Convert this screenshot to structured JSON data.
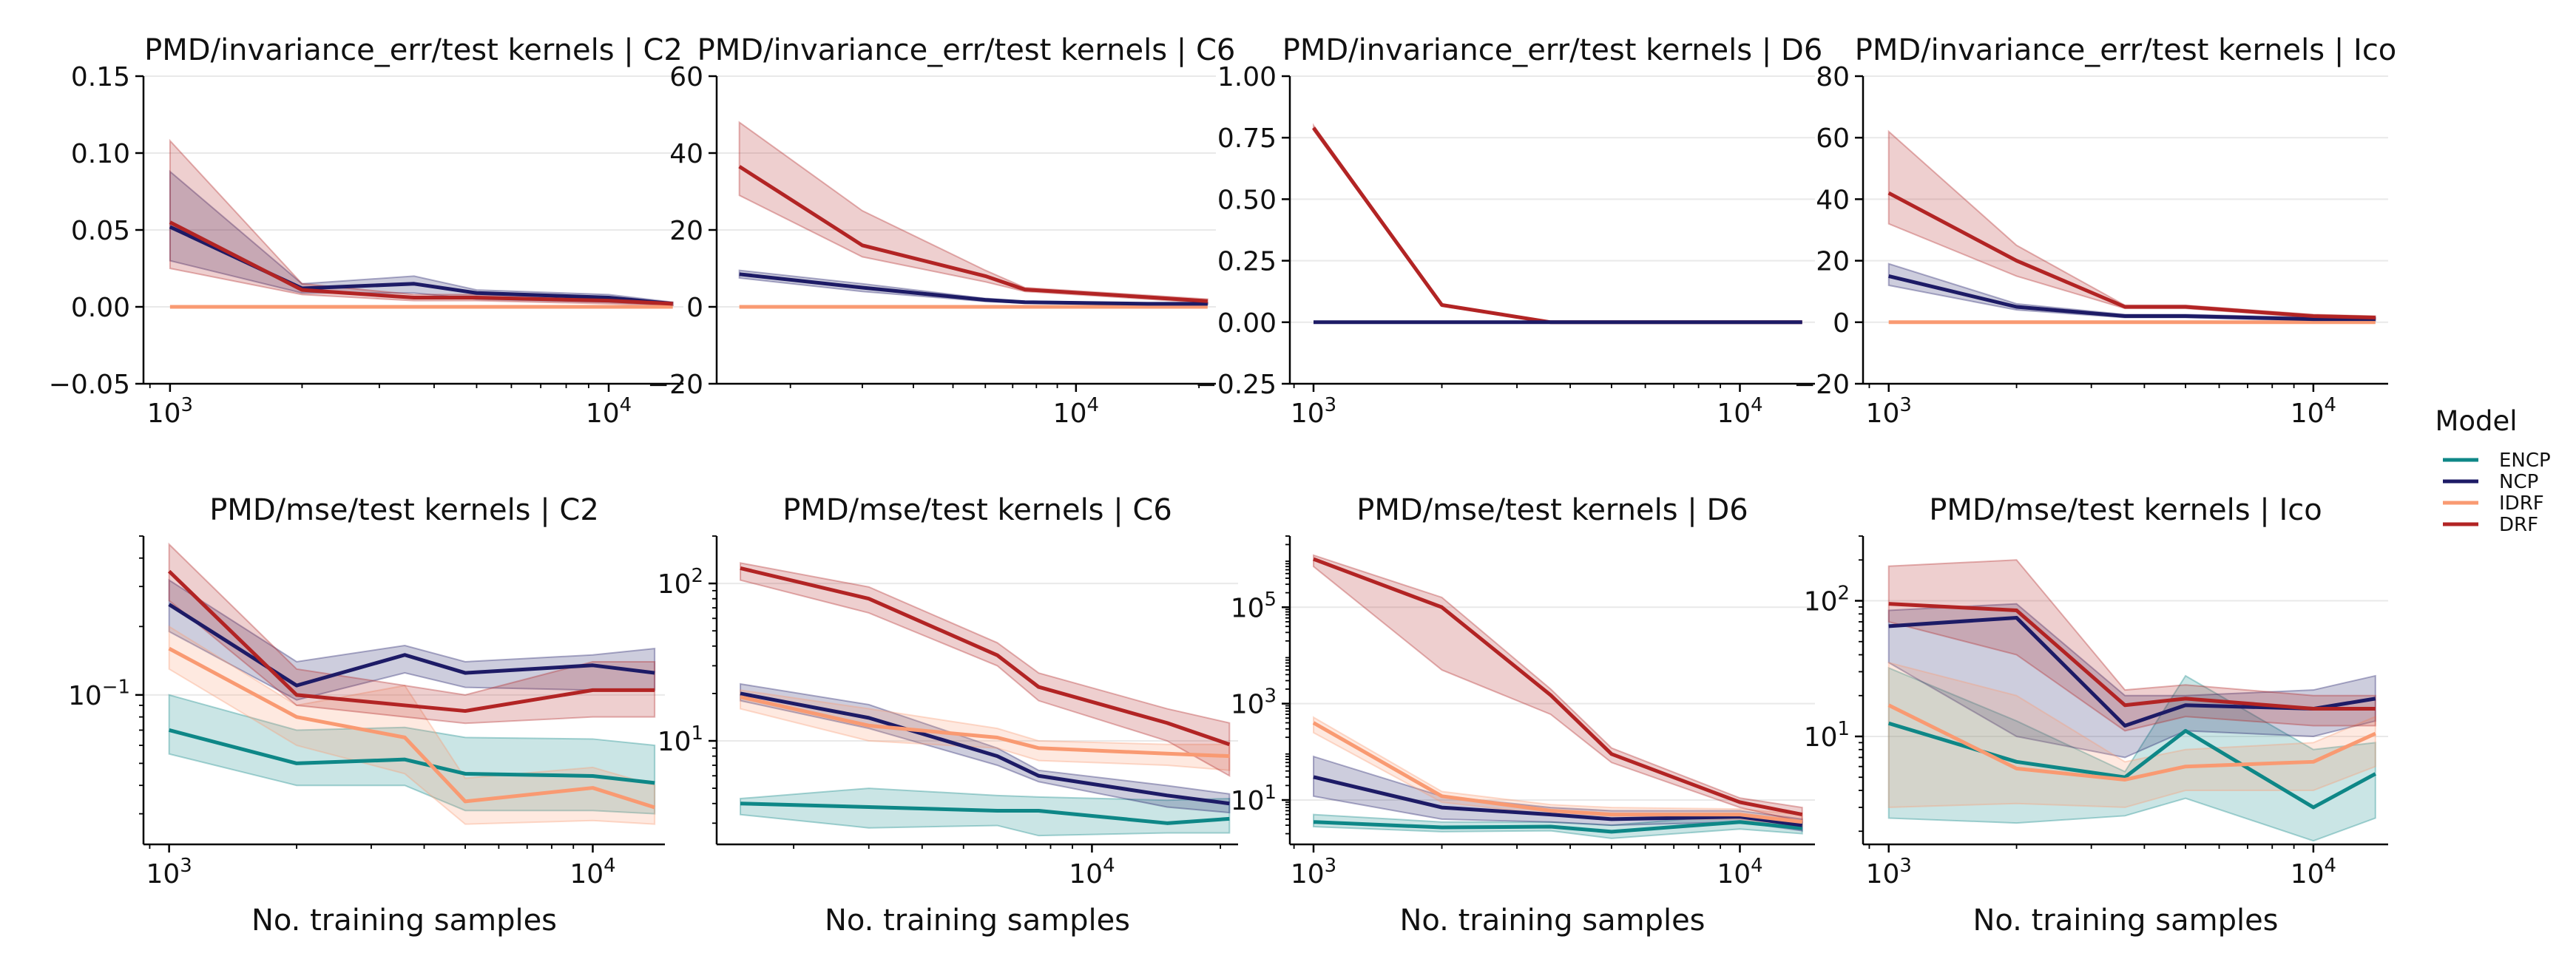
{
  "legend": {
    "title": "Model",
    "entries": [
      {
        "name": "ENCP",
        "color": "#0e8787"
      },
      {
        "name": "NCP",
        "color": "#1d1b66"
      },
      {
        "name": "IDRF",
        "color": "#f99a72"
      },
      {
        "name": "DRF",
        "color": "#b22424"
      }
    ]
  },
  "chart_data": [
    {
      "type": "line",
      "title": "PMD/invariance_err/test kernels | C2",
      "xlabel": "",
      "ylabel": "",
      "xscale": "log",
      "yscale": "linear",
      "xlim": [
        870,
        14800
      ],
      "ylim": [
        -0.05,
        0.15
      ],
      "xticks": [
        1000,
        10000
      ],
      "xtick_labels": [
        "10^3",
        "10^4"
      ],
      "yticks": [
        -0.05,
        0,
        0.05,
        0.1,
        0.15
      ],
      "ytick_labels": [
        "−0.05",
        "0.00",
        "0.05",
        "0.10",
        "0.15"
      ],
      "grid": "horizontal",
      "x": [
        1000,
        2000,
        3600,
        5000,
        10000,
        14000
      ],
      "series": [
        {
          "name": "IDRF",
          "values": [
            0,
            0,
            0,
            0,
            0,
            0
          ],
          "lower": [
            0,
            0,
            0,
            0,
            0,
            0
          ],
          "upper": [
            0,
            0,
            0,
            0,
            0,
            0
          ]
        },
        {
          "name": "NCP",
          "values": [
            0.052,
            0.012,
            0.015,
            0.009,
            0.006,
            0.002
          ],
          "lower": [
            0.03,
            0.009,
            0.009,
            0.005,
            0.003,
            0.001
          ],
          "upper": [
            0.088,
            0.015,
            0.02,
            0.011,
            0.008,
            0.003
          ]
        },
        {
          "name": "DRF",
          "values": [
            0.055,
            0.011,
            0.006,
            0.006,
            0.004,
            0.002
          ],
          "lower": [
            0.025,
            0.008,
            0.004,
            0.004,
            0.002,
            0.001
          ],
          "upper": [
            0.108,
            0.015,
            0.008,
            0.008,
            0.006,
            0.003
          ]
        }
      ]
    },
    {
      "type": "line",
      "title": "PMD/invariance_err/test kernels | C6",
      "xlabel": "",
      "ylabel": "",
      "xscale": "log",
      "yscale": "linear",
      "xlim": [
        1320,
        22000
      ],
      "ylim": [
        -20,
        60
      ],
      "xticks": [
        10000
      ],
      "xtick_labels": [
        "10^4"
      ],
      "yticks": [
        -20,
        0,
        20,
        40,
        60
      ],
      "ytick_labels": [
        "−20",
        "0",
        "20",
        "40",
        "60"
      ],
      "grid": "horizontal",
      "x": [
        1500,
        3000,
        6000,
        7500,
        15000,
        21000
      ],
      "series": [
        {
          "name": "IDRF",
          "values": [
            0,
            0,
            0,
            0,
            0,
            0
          ],
          "lower": [
            0,
            0,
            0,
            0,
            0,
            0
          ],
          "upper": [
            0,
            0,
            0,
            0,
            0,
            0
          ]
        },
        {
          "name": "NCP",
          "values": [
            8.5,
            5,
            1.8,
            1.2,
            0.8,
            0.8
          ],
          "lower": [
            7.5,
            4,
            1.4,
            1,
            0.6,
            0.6
          ],
          "upper": [
            9.5,
            6,
            2.2,
            1.5,
            1,
            1
          ]
        },
        {
          "name": "DRF",
          "values": [
            36.5,
            16,
            8,
            4.5,
            2.5,
            1.5
          ],
          "lower": [
            29,
            13,
            6.5,
            4,
            2,
            1
          ],
          "upper": [
            48,
            25,
            9.5,
            5,
            3,
            2
          ]
        }
      ]
    },
    {
      "type": "line",
      "title": "PMD/invariance_err/test kernels | D6",
      "xlabel": "",
      "ylabel": "",
      "xscale": "log",
      "yscale": "linear",
      "xlim": [
        880,
        15000
      ],
      "ylim": [
        -0.25,
        1.0
      ],
      "xticks": [
        1000,
        10000
      ],
      "xtick_labels": [
        "10^3",
        "10^4"
      ],
      "yticks": [
        -0.25,
        0,
        0.25,
        0.5,
        0.75,
        1.0
      ],
      "ytick_labels": [
        "−0.25",
        "0.00",
        "0.25",
        "0.50",
        "0.75",
        "1.00"
      ],
      "grid": "horizontal",
      "x": [
        1000,
        2000,
        3600,
        5000,
        10000,
        14000
      ],
      "series": [
        {
          "name": "DRF",
          "values": [
            0.79,
            0.07,
            0,
            0,
            0,
            0
          ],
          "lower": [
            0.78,
            0.065,
            0,
            0,
            0,
            0
          ],
          "upper": [
            0.8,
            0.075,
            0,
            0,
            0,
            0
          ]
        },
        {
          "name": "NCP",
          "values": [
            0,
            0,
            0,
            0,
            0,
            0
          ],
          "lower": [
            0,
            0,
            0,
            0,
            0,
            0
          ],
          "upper": [
            0,
            0,
            0,
            0,
            0,
            0
          ]
        }
      ]
    },
    {
      "type": "line",
      "title": "PMD/invariance_err/test kernels | Ico",
      "xlabel": "",
      "ylabel": "",
      "xscale": "log",
      "yscale": "linear",
      "xlim": [
        870,
        15000
      ],
      "ylim": [
        -20,
        80
      ],
      "xticks": [
        1000,
        10000
      ],
      "xtick_labels": [
        "10^3",
        "10^4"
      ],
      "yticks": [
        -20,
        0,
        20,
        40,
        60,
        80
      ],
      "ytick_labels": [
        "−20",
        "0",
        "20",
        "40",
        "60",
        "80"
      ],
      "grid": "horizontal",
      "x": [
        1000,
        2000,
        3600,
        5000,
        10000,
        14000
      ],
      "series": [
        {
          "name": "IDRF",
          "values": [
            0,
            0,
            0,
            0,
            0,
            0
          ],
          "lower": [
            0,
            0,
            0,
            0,
            0,
            0
          ],
          "upper": [
            0,
            0,
            0,
            0,
            0,
            0
          ]
        },
        {
          "name": "NCP",
          "values": [
            15,
            5,
            2,
            2,
            1,
            1
          ],
          "lower": [
            12,
            4,
            1.5,
            1.5,
            0.5,
            0.5
          ],
          "upper": [
            19,
            6,
            2.5,
            2.5,
            1.5,
            1.5
          ]
        },
        {
          "name": "DRF",
          "values": [
            42,
            20,
            5,
            5,
            2,
            1.5
          ],
          "lower": [
            32,
            15,
            4.5,
            4.5,
            1.5,
            1
          ],
          "upper": [
            62,
            25,
            5.5,
            5.5,
            2.5,
            2
          ]
        }
      ]
    },
    {
      "type": "line",
      "title": "PMD/mse/test kernels | C2",
      "xlabel": "No. training samples",
      "ylabel": "",
      "xscale": "log",
      "yscale": "log",
      "xlim": [
        870,
        14800
      ],
      "ylim": [
        0.022,
        0.5
      ],
      "xticks": [
        1000,
        10000
      ],
      "xtick_labels": [
        "10^3",
        "10^4"
      ],
      "yticks": [
        0.1
      ],
      "ytick_labels": [
        "10^−1"
      ],
      "grid": "horizontal",
      "x": [
        1000,
        2000,
        3600,
        5000,
        10000,
        14000
      ],
      "series": [
        {
          "name": "ENCP",
          "values": [
            0.07,
            0.05,
            0.052,
            0.045,
            0.044,
            0.041
          ],
          "lower": [
            0.055,
            0.04,
            0.04,
            0.031,
            0.031,
            0.03
          ],
          "upper": [
            0.1,
            0.07,
            0.072,
            0.065,
            0.064,
            0.06
          ]
        },
        {
          "name": "NCP",
          "values": [
            0.25,
            0.11,
            0.15,
            0.125,
            0.135,
            0.125
          ],
          "lower": [
            0.19,
            0.095,
            0.125,
            0.108,
            0.105,
            0.105
          ],
          "upper": [
            0.32,
            0.14,
            0.165,
            0.14,
            0.15,
            0.16
          ]
        },
        {
          "name": "IDRF",
          "values": [
            0.16,
            0.08,
            0.065,
            0.034,
            0.039,
            0.032
          ],
          "lower": [
            0.13,
            0.06,
            0.045,
            0.027,
            0.028,
            0.027
          ],
          "upper": [
            0.2,
            0.09,
            0.11,
            0.043,
            0.048,
            0.04
          ]
        },
        {
          "name": "DRF",
          "values": [
            0.35,
            0.1,
            0.09,
            0.085,
            0.105,
            0.105
          ],
          "lower": [
            0.26,
            0.09,
            0.08,
            0.075,
            0.08,
            0.08
          ],
          "upper": [
            0.46,
            0.13,
            0.11,
            0.1,
            0.14,
            0.14
          ]
        }
      ]
    },
    {
      "type": "line",
      "title": "PMD/mse/test kernels | C6",
      "xlabel": "No. training samples",
      "ylabel": "",
      "xscale": "log",
      "yscale": "log",
      "xlim": [
        1320,
        22000
      ],
      "ylim": [
        2.2,
        200
      ],
      "xticks": [
        10000
      ],
      "xtick_labels": [
        "10^4"
      ],
      "yticks": [
        10,
        100
      ],
      "ytick_labels": [
        "10^1",
        "10^2"
      ],
      "grid": "horizontal",
      "x": [
        1500,
        3000,
        6000,
        7500,
        15000,
        21000
      ],
      "series": [
        {
          "name": "ENCP",
          "values": [
            4,
            3.8,
            3.6,
            3.6,
            3,
            3.2
          ],
          "lower": [
            3.4,
            2.8,
            2.9,
            2.5,
            2.6,
            2.6
          ],
          "upper": [
            4.3,
            5,
            4.5,
            4.4,
            4.2,
            4.3
          ]
        },
        {
          "name": "NCP",
          "values": [
            20,
            14,
            8,
            6,
            4.5,
            4
          ],
          "lower": [
            18,
            12,
            7,
            5.5,
            3.8,
            3.5
          ],
          "upper": [
            23,
            17,
            9,
            6.5,
            5.2,
            4.6
          ]
        },
        {
          "name": "IDRF",
          "values": [
            19,
            12.5,
            10.5,
            9,
            8.3,
            8
          ],
          "lower": [
            16,
            10,
            9,
            7.5,
            7,
            6.5
          ],
          "upper": [
            21,
            16,
            12,
            10,
            9.5,
            9.5
          ]
        },
        {
          "name": "DRF",
          "values": [
            125,
            80,
            35,
            22,
            13,
            9.5
          ],
          "lower": [
            105,
            65,
            30,
            18,
            10,
            6
          ],
          "upper": [
            135,
            95,
            42,
            27,
            16,
            13
          ]
        }
      ]
    },
    {
      "type": "line",
      "title": "PMD/mse/test kernels | D6",
      "xlabel": "No. training samples",
      "ylabel": "",
      "xscale": "log",
      "yscale": "log",
      "xlim": [
        880,
        15000
      ],
      "ylim": [
        1.2,
        3000000
      ],
      "xticks": [
        1000,
        10000
      ],
      "xtick_labels": [
        "10^3",
        "10^4"
      ],
      "yticks": [
        10,
        1000,
        100000
      ],
      "ytick_labels": [
        "10^1",
        "10^3",
        "10^5"
      ],
      "grid": "horizontal",
      "x": [
        1000,
        2000,
        3600,
        5000,
        10000,
        14000
      ],
      "series": [
        {
          "name": "ENCP",
          "values": [
            3.5,
            2.7,
            2.8,
            2.2,
            3.5,
            2.6
          ],
          "lower": [
            2.8,
            2.2,
            2.3,
            1.6,
            2.5,
            2
          ],
          "upper": [
            5,
            3.5,
            3.5,
            3,
            5,
            3.5
          ]
        },
        {
          "name": "NCP",
          "values": [
            30,
            7,
            5,
            4,
            4.5,
            3
          ],
          "lower": [
            12,
            4,
            3.5,
            3,
            3.5,
            2.3
          ],
          "upper": [
            80,
            12,
            7,
            6,
            6,
            4
          ]
        },
        {
          "name": "IDRF",
          "values": [
            400,
            12,
            6,
            5,
            5,
            3.5
          ],
          "lower": [
            250,
            9,
            5,
            4,
            4,
            2.8
          ],
          "upper": [
            520,
            15,
            8,
            7,
            6.5,
            5
          ]
        },
        {
          "name": "DRF",
          "values": [
            1000000,
            100000,
            1500,
            90,
            9,
            5
          ],
          "lower": [
            700000,
            5000,
            600,
            60,
            7,
            3.5
          ],
          "upper": [
            1200000,
            160000,
            2000,
            120,
            11,
            7
          ]
        }
      ]
    },
    {
      "type": "line",
      "title": "PMD/mse/test kernels | Ico",
      "xlabel": "No. training samples",
      "ylabel": "",
      "xscale": "log",
      "yscale": "log",
      "xlim": [
        870,
        15000
      ],
      "ylim": [
        1.6,
        300
      ],
      "xticks": [
        1000,
        10000
      ],
      "xtick_labels": [
        "10^3",
        "10^4"
      ],
      "yticks": [
        10,
        100
      ],
      "ytick_labels": [
        "10^1",
        "10^2"
      ],
      "grid": "horizontal",
      "x": [
        1000,
        2000,
        3600,
        5000,
        10000,
        14000
      ],
      "series": [
        {
          "name": "ENCP",
          "values": [
            12.5,
            6.5,
            5,
            11,
            3,
            5.3
          ],
          "lower": [
            2.5,
            2.3,
            2.6,
            3.5,
            1.7,
            2.5
          ],
          "upper": [
            32,
            13,
            5.5,
            28,
            8,
            9
          ]
        },
        {
          "name": "NCP",
          "values": [
            65,
            75,
            12,
            17,
            16,
            19
          ],
          "lower": [
            35,
            10,
            7,
            11,
            10,
            13
          ],
          "upper": [
            85,
            95,
            20,
            20,
            22,
            28
          ]
        },
        {
          "name": "IDRF",
          "values": [
            17,
            5.8,
            4.8,
            6,
            6.5,
            10.5
          ],
          "lower": [
            3,
            3.2,
            3,
            4,
            4,
            6
          ],
          "upper": [
            35,
            20,
            6.5,
            8,
            9,
            14
          ]
        },
        {
          "name": "DRF",
          "values": [
            95,
            85,
            17,
            19,
            16,
            16
          ],
          "lower": [
            70,
            40,
            11,
            14,
            12,
            12
          ],
          "upper": [
            180,
            200,
            22,
            24,
            20,
            20
          ]
        }
      ]
    }
  ]
}
